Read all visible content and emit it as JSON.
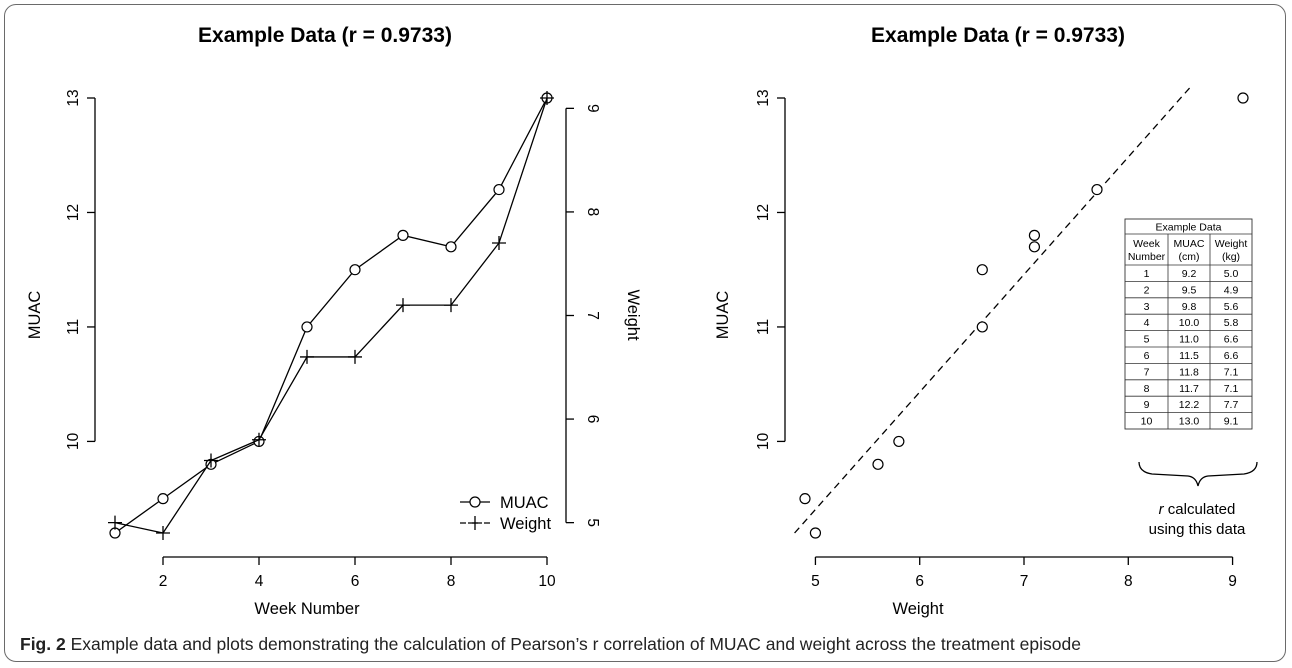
{
  "chart_data": [
    {
      "type": "line",
      "title": "Example Data (r = 0.9733)",
      "xlabel": "Week Number",
      "ylabel": "MUAC",
      "y2label": "Weight",
      "x": [
        1,
        2,
        3,
        4,
        5,
        6,
        7,
        8,
        9,
        10
      ],
      "xlim": [
        1,
        10
      ],
      "xticks": [
        2,
        4,
        6,
        8,
        10
      ],
      "ylim": [
        9.2,
        13
      ],
      "yticks": [
        10,
        11,
        12,
        13
      ],
      "y2lim": [
        4.9,
        9.1
      ],
      "y2ticks": [
        5,
        6,
        7,
        8,
        9
      ],
      "series": [
        {
          "name": "MUAC",
          "marker": "circle",
          "axis": "left",
          "values": [
            9.2,
            9.5,
            9.8,
            10.0,
            11.0,
            11.5,
            11.8,
            11.7,
            12.2,
            13.0
          ]
        },
        {
          "name": "Weight",
          "marker": "plus",
          "axis": "right",
          "values": [
            5.0,
            4.9,
            5.6,
            5.8,
            6.6,
            6.6,
            7.1,
            7.1,
            7.7,
            9.1
          ]
        }
      ],
      "legend_position": "bottom-right",
      "grid": false
    },
    {
      "type": "scatter",
      "title": "Example Data (r = 0.9733)",
      "xlabel": "Weight",
      "ylabel": "MUAC",
      "xlim": [
        4.9,
        9.1
      ],
      "xticks": [
        5,
        6,
        7,
        8,
        9
      ],
      "ylim": [
        9.2,
        13
      ],
      "yticks": [
        10,
        11,
        12,
        13
      ],
      "points": [
        {
          "x": 5.0,
          "y": 9.2
        },
        {
          "x": 4.9,
          "y": 9.5
        },
        {
          "x": 5.6,
          "y": 9.8
        },
        {
          "x": 5.8,
          "y": 10.0
        },
        {
          "x": 6.6,
          "y": 11.0
        },
        {
          "x": 6.6,
          "y": 11.5
        },
        {
          "x": 7.1,
          "y": 11.8
        },
        {
          "x": 7.1,
          "y": 11.7
        },
        {
          "x": 7.7,
          "y": 12.2
        },
        {
          "x": 9.1,
          "y": 13.0
        }
      ],
      "fit_line": {
        "style": "dashed",
        "from": [
          4.8,
          9.2
        ],
        "to": [
          8.6,
          13.1
        ]
      },
      "grid": false,
      "table": {
        "title": "Example Data",
        "headers": [
          [
            "Week",
            "Number"
          ],
          [
            "MUAC",
            "(cm)"
          ],
          [
            "Weight",
            "(kg)"
          ]
        ],
        "rows": [
          [
            "1",
            "9.2",
            "5.0"
          ],
          [
            "2",
            "9.5",
            "4.9"
          ],
          [
            "3",
            "9.8",
            "5.6"
          ],
          [
            "4",
            "10.0",
            "5.8"
          ],
          [
            "5",
            "11.0",
            "6.6"
          ],
          [
            "6",
            "11.5",
            "6.6"
          ],
          [
            "7",
            "11.8",
            "7.1"
          ],
          [
            "8",
            "11.7",
            "7.1"
          ],
          [
            "9",
            "12.2",
            "7.7"
          ],
          [
            "10",
            "13.0",
            "9.1"
          ]
        ]
      },
      "annotation": {
        "italic": "r",
        "text": " calculated",
        "line2": "using this data"
      }
    }
  ],
  "caption": {
    "label": "Fig. 2",
    "text": " Example data and plots demonstrating the calculation of Pearson’s r correlation of MUAC and weight across the treatment episode"
  }
}
